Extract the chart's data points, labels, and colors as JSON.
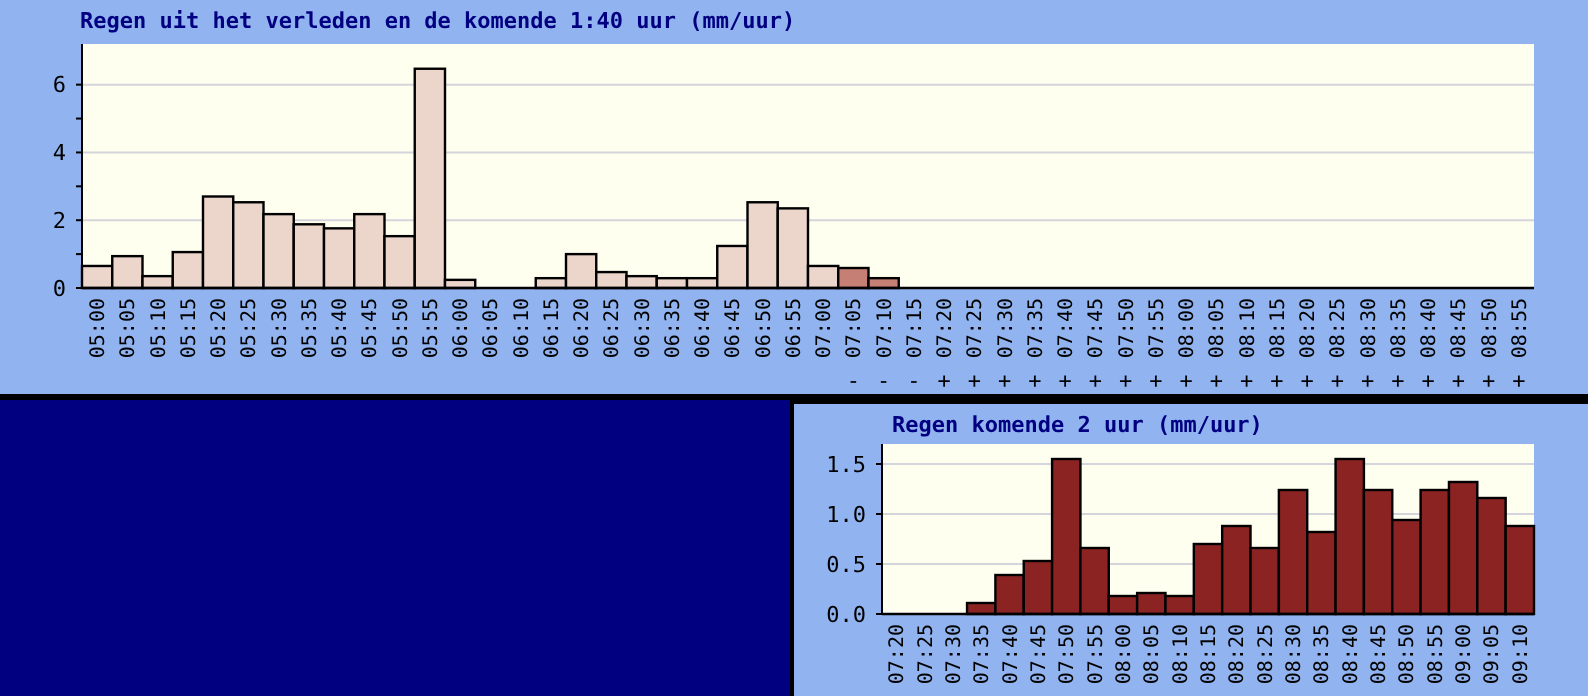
{
  "chart_data": [
    {
      "type": "bar",
      "title": "Regen uit het verleden en de komende 1:40 uur  (mm/uur)",
      "categories": [
        "05:00",
        "05:05",
        "05:10",
        "05:15",
        "05:20",
        "05:25",
        "05:30",
        "05:35",
        "05:40",
        "05:45",
        "05:50",
        "05:55",
        "06:00",
        "06:05",
        "06:10",
        "06:15",
        "06:20",
        "06:25",
        "06:30",
        "06:35",
        "06:40",
        "06:45",
        "06:50",
        "06:55",
        "07:00",
        "07:05",
        "07:10",
        "07:15",
        "07:20",
        "07:25",
        "07:30",
        "07:35",
        "07:40",
        "07:45",
        "07:50",
        "07:55",
        "08:00",
        "08:05",
        "08:10",
        "08:15",
        "08:20",
        "08:25",
        "08:30",
        "08:35",
        "08:40",
        "08:45",
        "08:50",
        "08:55"
      ],
      "values": [
        0.65,
        0.94,
        0.35,
        1.06,
        2.7,
        2.53,
        2.18,
        1.88,
        1.76,
        2.18,
        1.53,
        6.47,
        0.24,
        0,
        0,
        0.29,
        1.0,
        0.47,
        0.35,
        0.29,
        0.29,
        1.24,
        2.53,
        2.35,
        0.65,
        0.59,
        0.29,
        0,
        0,
        0,
        0,
        0,
        0,
        0,
        0,
        0,
        0,
        0,
        0,
        0,
        0,
        0,
        0,
        0,
        0,
        0,
        0,
        0
      ],
      "colors": [
        "#ecd5cb",
        "#ecd5cb",
        "#ecd5cb",
        "#ecd5cb",
        "#ecd5cb",
        "#ecd5cb",
        "#ecd5cb",
        "#ecd5cb",
        "#ecd5cb",
        "#ecd5cb",
        "#ecd5cb",
        "#ecd5cb",
        "#ecd5cb",
        "#ecd5cb",
        "#ecd5cb",
        "#ecd5cb",
        "#ecd5cb",
        "#ecd5cb",
        "#ecd5cb",
        "#ecd5cb",
        "#ecd5cb",
        "#ecd5cb",
        "#ecd5cb",
        "#ecd5cb",
        "#ecd5cb",
        "#c67f75",
        "#c67f75",
        "#c67f75",
        "#c67f75",
        "#c67f75",
        "#c67f75",
        "#c67f75",
        "#c67f75",
        "#c67f75",
        "#c67f75",
        "#c67f75",
        "#c67f75",
        "#c67f75",
        "#c67f75",
        "#c67f75",
        "#c67f75",
        "#c67f75",
        "#c67f75",
        "#c67f75",
        "#c67f75",
        "#c67f75",
        "#c67f75",
        "#c67f75"
      ],
      "ylim": [
        0,
        7.2
      ],
      "yticks": [
        0,
        {
          "value": 1,
          "label": null
        },
        2,
        {
          "value": 3,
          "label": null
        },
        4,
        {
          "value": 5,
          "label": null
        },
        6
      ],
      "grid": "y",
      "annotations": [
        "-",
        "-",
        "-",
        "+",
        "+",
        "+",
        "+",
        "+",
        "+",
        "+",
        "+",
        "+",
        "+",
        "+",
        "+",
        "+",
        "+",
        "+",
        "+",
        "+",
        "+",
        "+",
        "+"
      ]
    },
    {
      "type": "bar",
      "title": "Regen komende 2 uur  (mm/uur)",
      "categories": [
        "07:20",
        "07:25",
        "07:30",
        "07:35",
        "07:40",
        "07:45",
        "07:50",
        "07:55",
        "08:00",
        "08:05",
        "08:10",
        "08:15",
        "08:20",
        "08:25",
        "08:30",
        "08:35",
        "08:40",
        "08:45",
        "08:50",
        "08:55",
        "09:00",
        "09:05",
        "09:10"
      ],
      "values": [
        0,
        0,
        0,
        0.11,
        0.39,
        0.53,
        1.55,
        0.66,
        0.18,
        0.21,
        0.18,
        0.7,
        0.88,
        0.66,
        1.24,
        0.82,
        1.55,
        1.24,
        0.94,
        1.24,
        1.32,
        1.16,
        0.88
      ],
      "color": "#8b2323",
      "ylim": [
        0,
        1.7
      ],
      "yticks": [
        {
          "value": 0,
          "label": "0.0"
        },
        {
          "value": 0.5,
          "label": "0.5"
        },
        {
          "value": 1,
          "label": "1.0"
        },
        {
          "value": 1.5,
          "label": "1.5"
        }
      ],
      "grid": "y"
    }
  ]
}
